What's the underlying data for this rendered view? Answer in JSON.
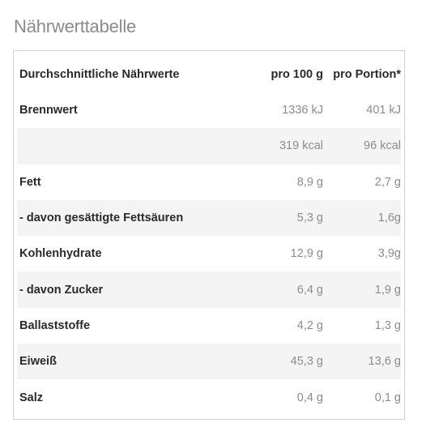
{
  "title": "Nährwerttabelle",
  "table": {
    "headers": [
      "Durchschnittliche Nährwerte",
      "pro 100 g",
      "pro Portion*"
    ],
    "rows": [
      {
        "label": "Brennwert",
        "per100": "1336 kJ",
        "portion": "401 kJ"
      },
      {
        "label": "",
        "per100": "319 kcal",
        "portion": "96 kcal"
      },
      {
        "label": "Fett",
        "per100": "8,9 g",
        "portion": "2,7 g"
      },
      {
        "label": "- davon gesättigte Fettsäuren",
        "per100": "5,3 g",
        "portion": "1,6g"
      },
      {
        "label": "Kohlenhydrate",
        "per100": "12,9 g",
        "portion": "3,9g"
      },
      {
        "label": "- davon Zucker",
        "per100": "6,4 g",
        "portion": "1,9 g"
      },
      {
        "label": "Ballaststoffe",
        "per100": "4,2 g",
        "portion": "1,3 g"
      },
      {
        "label": "Eiweiß",
        "per100": "45,3 g",
        "portion": "13,6 g"
      },
      {
        "label": "Salz",
        "per100": "0,4 g",
        "portion": "0,1 g"
      }
    ]
  },
  "colors": {
    "title": "#8a8a8a",
    "label_text": "#2a2a2a",
    "value_text": "#8c8c8c",
    "stripe": "#f4f4f4",
    "border": "#cfcfcf"
  }
}
